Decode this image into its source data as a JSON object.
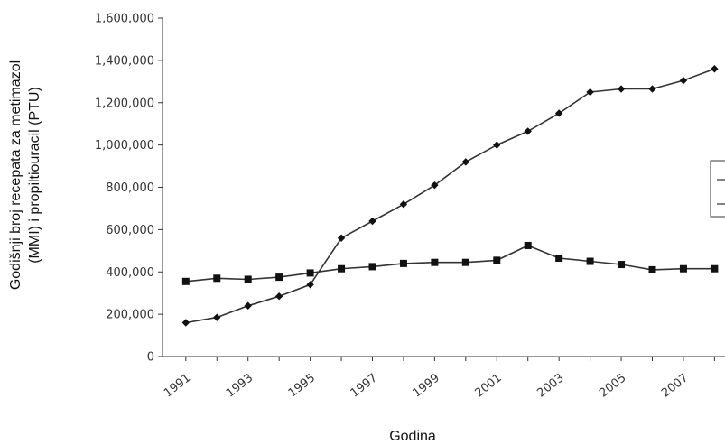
{
  "chart_data": {
    "type": "line",
    "title": "",
    "xlabel": "Godina",
    "ylabel_lines": [
      "Godišnji broj recepata za metimazol",
      "(MMI) i propiltiouracil (PTU)"
    ],
    "x": [
      1991,
      1992,
      1993,
      1994,
      1995,
      1996,
      1997,
      1998,
      1999,
      2000,
      2001,
      2002,
      2003,
      2004,
      2005,
      2006,
      2007,
      2008
    ],
    "x_tick_labels": [
      "1991",
      "1993",
      "1995",
      "1997",
      "1999",
      "2001",
      "2003",
      "2005",
      "2007"
    ],
    "y_tick_labels": [
      "0",
      "200,000",
      "400,000",
      "600,000",
      "800,000",
      "1,000,000",
      "1,200,000",
      "1,400,000",
      "1,600,000"
    ],
    "ylim": [
      0,
      1600000
    ],
    "grid": false,
    "legend_placement": "right, partially cut off",
    "series": [
      {
        "marker": "diamond",
        "values": [
          160000,
          185000,
          240000,
          285000,
          340000,
          560000,
          640000,
          720000,
          810000,
          920000,
          1000000,
          1065000,
          1150000,
          1250000,
          1265000,
          1265000,
          1305000,
          1360000
        ]
      },
      {
        "marker": "square",
        "values": [
          355000,
          370000,
          365000,
          375000,
          395000,
          415000,
          425000,
          440000,
          445000,
          445000,
          455000,
          525000,
          465000,
          450000,
          435000,
          410000,
          415000,
          415000
        ]
      }
    ]
  }
}
